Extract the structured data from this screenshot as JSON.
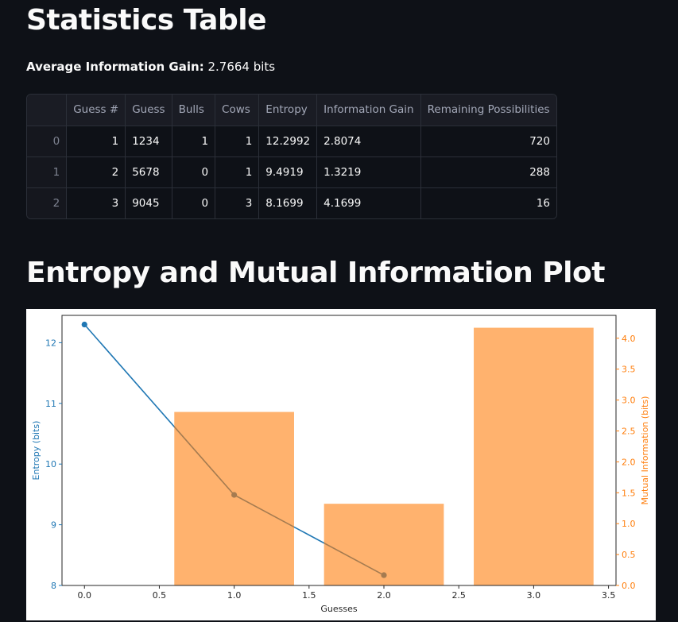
{
  "title": "Statistics Table",
  "avg_label": "Average Information Gain:",
  "avg_value": "2.7664 bits",
  "table": {
    "headers": [
      "",
      "Guess #",
      "Guess",
      "Bulls",
      "Cows",
      "Entropy",
      "Information Gain",
      "Remaining Possibilities"
    ],
    "rows": [
      [
        "0",
        "1",
        "1234",
        "1",
        "1",
        "12.2992",
        "2.8074",
        "720"
      ],
      [
        "1",
        "2",
        "5678",
        "0",
        "1",
        "9.4919",
        "1.3219",
        "288"
      ],
      [
        "2",
        "3",
        "9045",
        "0",
        "3",
        "8.1699",
        "4.1699",
        "16"
      ]
    ]
  },
  "section_title": "Entropy and Mutual Information Plot",
  "chart_data": {
    "type": "bar+line",
    "xlabel": "Guesses",
    "ylabel_left": "Entropy (bits)",
    "ylabel_right": "Mutual Information (bits)",
    "xlim": [
      -0.15,
      3.55
    ],
    "ylim_left": [
      8,
      12.45
    ],
    "ylim_right": [
      0,
      4.37
    ],
    "x_ticks": [
      0.0,
      0.5,
      1.0,
      1.5,
      2.0,
      2.5,
      3.0,
      3.5
    ],
    "y_left_ticks": [
      8,
      9,
      10,
      11,
      12
    ],
    "y_right_ticks": [
      0.0,
      0.5,
      1.0,
      1.5,
      2.0,
      2.5,
      3.0,
      3.5,
      4.0
    ],
    "line_series": {
      "name": "Entropy",
      "x": [
        0,
        1,
        2
      ],
      "y": [
        12.2992,
        9.4919,
        8.1699
      ],
      "color": "#1f77b4"
    },
    "bar_series": {
      "name": "Mutual Information",
      "x": [
        1,
        2,
        3
      ],
      "values": [
        2.8074,
        1.3219,
        4.1699
      ],
      "color": "#ff7f0e",
      "alpha": 0.6
    },
    "grid": false
  }
}
